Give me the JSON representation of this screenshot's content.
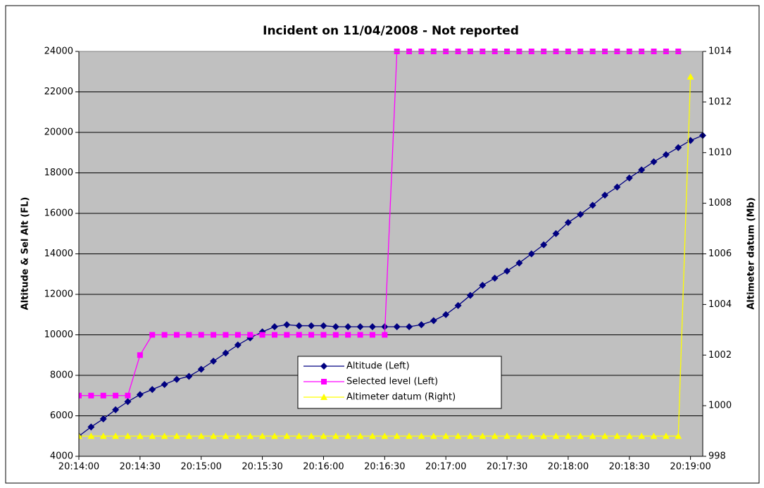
{
  "chart_data": {
    "type": "line",
    "title": "Incident on 11/04/2008 - Not reported",
    "ylabel": "Altitude & Sel Alt (FL)",
    "y2label": "Altimeter datum (Mb)",
    "x": [
      "20:14:00",
      "20:14:06",
      "20:14:12",
      "20:14:18",
      "20:14:24",
      "20:14:30",
      "20:14:36",
      "20:14:42",
      "20:14:48",
      "20:14:54",
      "20:15:00",
      "20:15:06",
      "20:15:12",
      "20:15:18",
      "20:15:24",
      "20:15:30",
      "20:15:36",
      "20:15:42",
      "20:15:48",
      "20:15:54",
      "20:16:00",
      "20:16:06",
      "20:16:12",
      "20:16:18",
      "20:16:24",
      "20:16:30",
      "20:16:36",
      "20:16:42",
      "20:16:48",
      "20:16:54",
      "20:17:00",
      "20:17:06",
      "20:17:12",
      "20:17:18",
      "20:17:24",
      "20:17:30",
      "20:17:36",
      "20:17:42",
      "20:17:48",
      "20:17:54",
      "20:18:00",
      "20:18:06",
      "20:18:12",
      "20:18:18",
      "20:18:24",
      "20:18:30",
      "20:18:36",
      "20:18:42",
      "20:18:48",
      "20:18:54",
      "20:19:00",
      "20:19:06"
    ],
    "xlim": [
      "20:14:00",
      "20:19:06"
    ],
    "xticks": [
      "20:14:00",
      "20:14:30",
      "20:15:00",
      "20:15:30",
      "20:16:00",
      "20:16:30",
      "20:17:00",
      "20:17:30",
      "20:18:00",
      "20:18:30",
      "20:19:00"
    ],
    "ylim": [
      4000,
      24000
    ],
    "yticks": [
      4000,
      6000,
      8000,
      10000,
      12000,
      14000,
      16000,
      18000,
      20000,
      22000,
      24000
    ],
    "y2lim": [
      998,
      1014
    ],
    "y2ticks": [
      998,
      1000,
      1002,
      1004,
      1006,
      1008,
      1010,
      1012,
      1014
    ],
    "grid": true,
    "legend": "lower center",
    "series": [
      {
        "name": "Altitude (Left)",
        "color": "#000080",
        "marker": "diamond",
        "values": [
          5000,
          5450,
          5850,
          6300,
          6700,
          7050,
          7300,
          7550,
          7800,
          7950,
          8300,
          8700,
          9100,
          9500,
          9850,
          10150,
          10400,
          10500,
          10450,
          10450,
          10450,
          10400,
          10400,
          10400,
          10400,
          10400,
          10400,
          10400,
          10500,
          10700,
          11000,
          11450,
          11950,
          12450,
          12800,
          13150,
          13550,
          14000,
          14450,
          15000,
          15550,
          15950,
          16400,
          16900,
          17300,
          17750,
          18150,
          18550,
          18900,
          19250,
          19600,
          19850
        ]
      },
      {
        "name": "Selected level (Left)",
        "color": "#ff00ff",
        "marker": "square",
        "values": [
          7000,
          7000,
          7000,
          7000,
          7000,
          9000,
          10000,
          10000,
          10000,
          10000,
          10000,
          10000,
          10000,
          10000,
          10000,
          10000,
          10000,
          10000,
          10000,
          10000,
          10000,
          10000,
          10000,
          10000,
          10000,
          10000,
          24000,
          24000,
          24000,
          24000,
          24000,
          24000,
          24000,
          24000,
          24000,
          24000,
          24000,
          24000,
          24000,
          24000,
          24000,
          24000,
          24000,
          24000,
          24000,
          24000,
          24000,
          24000,
          24000,
          24000,
          null,
          null
        ]
      },
      {
        "name": "Altimeter datum (Right)",
        "color": "#ffff00",
        "marker": "triangle",
        "axis": "y2",
        "values": [
          998.8,
          998.8,
          998.8,
          998.8,
          998.8,
          998.8,
          998.8,
          998.8,
          998.8,
          998.8,
          998.8,
          998.8,
          998.8,
          998.8,
          998.8,
          998.8,
          998.8,
          998.8,
          998.8,
          998.8,
          998.8,
          998.8,
          998.8,
          998.8,
          998.8,
          998.8,
          998.8,
          998.8,
          998.8,
          998.8,
          998.8,
          998.8,
          998.8,
          998.8,
          998.8,
          998.8,
          998.8,
          998.8,
          998.8,
          998.8,
          998.8,
          998.8,
          998.8,
          998.8,
          998.8,
          998.8,
          998.8,
          998.8,
          998.8,
          998.8,
          1013,
          null
        ]
      }
    ]
  }
}
